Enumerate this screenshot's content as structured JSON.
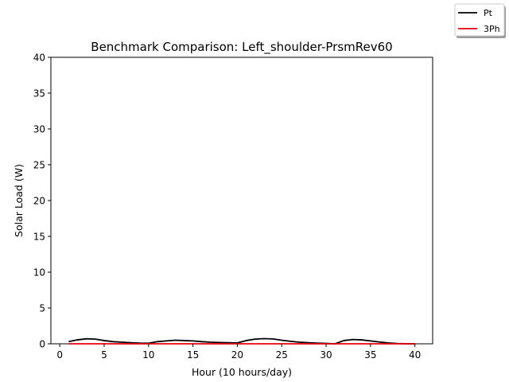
{
  "chart_data": {
    "type": "line",
    "title": "Benchmark Comparison: Left_shoulder-PrsmRev60",
    "xlabel": "Hour (10 hours/day)",
    "ylabel": "Solar Load (W)",
    "xlim": [
      -1,
      42
    ],
    "ylim": [
      0,
      40
    ],
    "xticks": [
      0,
      5,
      10,
      15,
      20,
      25,
      30,
      35,
      40
    ],
    "yticks": [
      0,
      5,
      10,
      15,
      20,
      25,
      30,
      35,
      40
    ],
    "grid": false,
    "legend_position": "top-right outside",
    "series": [
      {
        "name": "Pt",
        "color": "#000000",
        "x": [
          1,
          2,
          3,
          4,
          5,
          6,
          7,
          8,
          9,
          10,
          11,
          12,
          13,
          14,
          15,
          16,
          17,
          18,
          19,
          20,
          21,
          22,
          23,
          24,
          25,
          26,
          27,
          28,
          29,
          30,
          31,
          32,
          33,
          34,
          35,
          36,
          37,
          38,
          39,
          40
        ],
        "y": [
          0.3,
          0.55,
          0.7,
          0.65,
          0.45,
          0.3,
          0.22,
          0.15,
          0.1,
          0.08,
          0.3,
          0.4,
          0.5,
          0.45,
          0.4,
          0.3,
          0.22,
          0.18,
          0.15,
          0.12,
          0.45,
          0.65,
          0.72,
          0.68,
          0.5,
          0.35,
          0.22,
          0.15,
          0.1,
          0.05,
          0.0,
          0.45,
          0.6,
          0.55,
          0.4,
          0.25,
          0.12,
          0.04,
          0.0,
          0.0
        ]
      },
      {
        "name": "3Ph",
        "color": "#e8000b",
        "x": [
          1,
          2,
          3,
          4,
          5,
          6,
          7,
          8,
          9,
          10,
          11,
          12,
          13,
          14,
          15,
          16,
          17,
          18,
          19,
          20,
          21,
          22,
          23,
          24,
          25,
          26,
          27,
          28,
          29,
          30,
          31,
          32,
          33,
          34,
          35,
          36,
          37,
          38,
          39,
          40
        ],
        "y": [
          0,
          0,
          0,
          0,
          0,
          0,
          0,
          0,
          0,
          0,
          0,
          0,
          0,
          0,
          0,
          0,
          0,
          0,
          0,
          0,
          0,
          0,
          0,
          0,
          0,
          0,
          0,
          0,
          0,
          0,
          0,
          0,
          0,
          0,
          0,
          0,
          0,
          0,
          0,
          0
        ]
      }
    ]
  }
}
